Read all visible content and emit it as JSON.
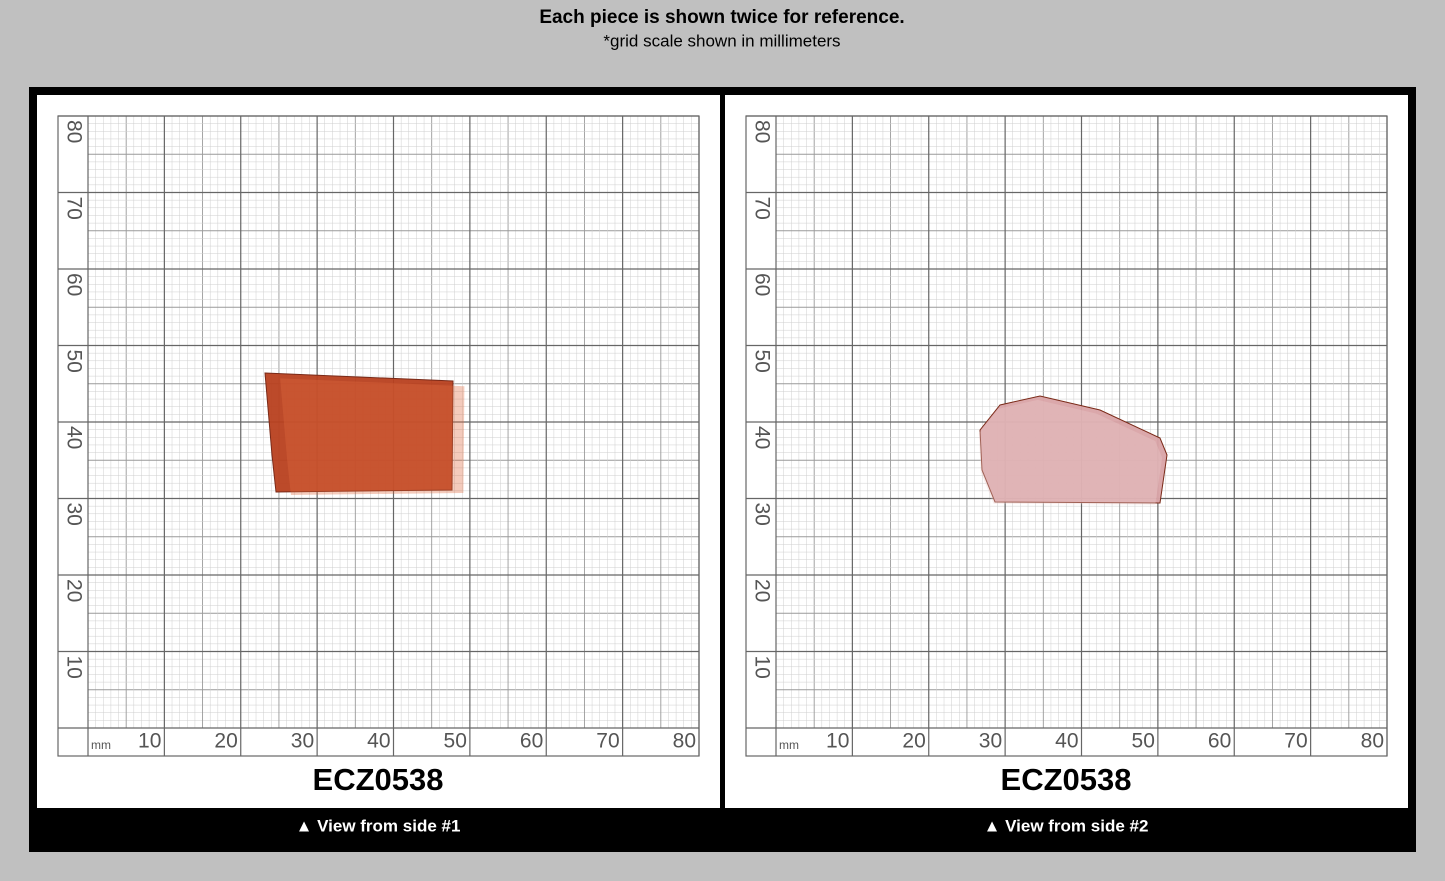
{
  "header": {
    "title": "Each piece is shown twice for reference.",
    "subtitle": "*grid scale shown in millimeters"
  },
  "grid": {
    "unit": "mm",
    "x_labels": [
      10,
      20,
      30,
      40,
      50,
      60,
      70,
      80
    ],
    "y_labels": [
      10,
      20,
      30,
      40,
      50,
      60,
      70,
      80
    ]
  },
  "panels": [
    {
      "label": "ECZ0538",
      "caption": "▲ View from side #1"
    },
    {
      "label": "ECZ0538",
      "caption": "▲ View from side #2"
    }
  ]
}
